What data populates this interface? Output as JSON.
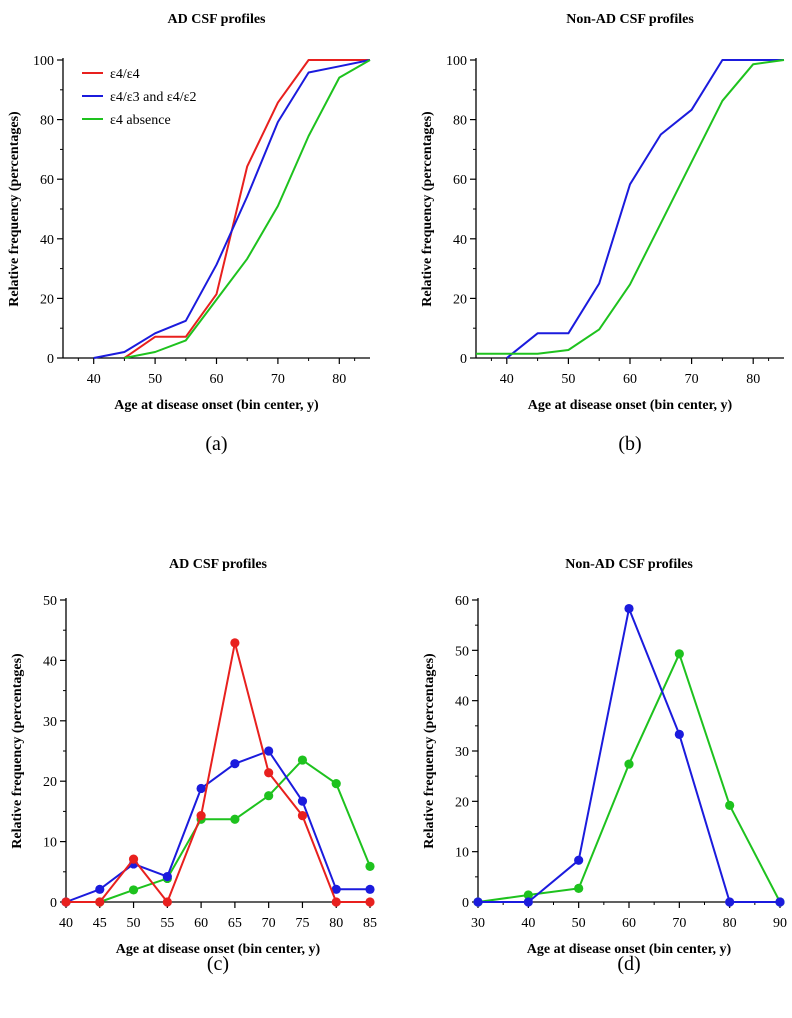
{
  "series_colors": {
    "e4e4": "#e8201e",
    "e4other": "#1b1bdd",
    "absence": "#1ec21e"
  },
  "legend": {
    "e4e4": "ε4/ε4",
    "e4other": "ε4/ε3 and ε4/ε2",
    "absence": "ε4 absence"
  },
  "chart_data": [
    {
      "id": "a",
      "panel_label": "(a)",
      "type": "line",
      "title": "AD CSF profiles",
      "xlabel": "Age at disease onset (bin center, y)",
      "ylabel": "Relative frequency (percentages)",
      "xlim": [
        35,
        85
      ],
      "ylim": [
        0,
        100
      ],
      "xticks": [
        40,
        50,
        60,
        70,
        80
      ],
      "yticks": [
        0,
        20,
        40,
        60,
        80,
        100
      ],
      "markers": false,
      "legend_position": "top-left",
      "series": [
        {
          "key": "e4e4",
          "name": "ε4/ε4",
          "x": [
            45,
            50,
            55,
            60,
            65,
            70,
            75,
            80,
            85
          ],
          "values": [
            0,
            7.1,
            7.1,
            21.4,
            64.3,
            85.7,
            100,
            100,
            100
          ]
        },
        {
          "key": "e4other",
          "name": "ε4/ε3 and ε4/ε2",
          "x": [
            40,
            45,
            50,
            55,
            60,
            65,
            70,
            75,
            80,
            85
          ],
          "values": [
            0,
            2,
            8.3,
            12.5,
            31.3,
            54.2,
            79.2,
            95.8,
            97.9,
            100
          ]
        },
        {
          "key": "absence",
          "name": "ε4 absence",
          "x": [
            45,
            50,
            55,
            60,
            65,
            70,
            75,
            80,
            85
          ],
          "values": [
            0,
            2,
            5.9,
            19.6,
            33.3,
            51,
            74.5,
            94.1,
            100
          ]
        }
      ]
    },
    {
      "id": "b",
      "panel_label": "(b)",
      "type": "line",
      "title": "Non-AD CSF profiles",
      "xlabel": "Age at disease onset (bin center, y)",
      "ylabel": "Relative frequency (percentages)",
      "xlim": [
        35,
        85
      ],
      "ylim": [
        0,
        100
      ],
      "xticks": [
        40,
        50,
        60,
        70,
        80
      ],
      "yticks": [
        0,
        20,
        40,
        60,
        80,
        100
      ],
      "markers": false,
      "series": [
        {
          "key": "e4other",
          "name": "ε4/ε3 and ε4/ε2",
          "x": [
            40,
            45,
            50,
            55,
            60,
            65,
            70,
            75,
            80,
            85
          ],
          "values": [
            0,
            8.3,
            8.3,
            25,
            58.3,
            75,
            83.3,
            100,
            100,
            100
          ]
        },
        {
          "key": "absence",
          "name": "ε4 absence",
          "x": [
            35,
            40,
            45,
            50,
            55,
            60,
            65,
            70,
            75,
            80,
            85
          ],
          "values": [
            1.4,
            1.4,
            1.4,
            2.7,
            9.6,
            24.7,
            45.2,
            65.8,
            86.3,
            98.6,
            100
          ]
        }
      ]
    },
    {
      "id": "c",
      "panel_label": "(c)",
      "type": "line",
      "title": "AD CSF profiles",
      "xlabel": "Age at disease onset (bin center, y)",
      "ylabel": "Relative frequency (percentages)",
      "xlim": [
        40,
        85
      ],
      "ylim": [
        0,
        50
      ],
      "xticks": [
        40,
        45,
        50,
        55,
        60,
        65,
        70,
        75,
        80,
        85
      ],
      "yticks": [
        0,
        10,
        20,
        30,
        40,
        50
      ],
      "markers": true,
      "series": [
        {
          "key": "absence",
          "name": "ε4 absence",
          "x": [
            45,
            50,
            55,
            60,
            65,
            70,
            75,
            80,
            85
          ],
          "values": [
            0,
            2,
            3.9,
            13.7,
            13.7,
            17.6,
            23.5,
            19.6,
            5.9
          ]
        },
        {
          "key": "e4other",
          "name": "ε4/ε3 and ε4/ε2",
          "x": [
            40,
            45,
            50,
            55,
            60,
            65,
            70,
            75,
            80,
            85
          ],
          "values": [
            0,
            2.1,
            6.3,
            4.2,
            18.8,
            22.9,
            25,
            16.7,
            2.1,
            2.1
          ]
        },
        {
          "key": "e4e4",
          "name": "ε4/ε4",
          "x": [
            40,
            45,
            50,
            55,
            60,
            65,
            70,
            75,
            80,
            85
          ],
          "values": [
            0,
            0,
            7.1,
            0,
            14.3,
            42.9,
            21.4,
            14.3,
            0,
            0
          ]
        }
      ]
    },
    {
      "id": "d",
      "panel_label": "(d)",
      "type": "line",
      "title": "Non-AD CSF profiles",
      "xlabel": "Age at disease onset (bin center, y)",
      "ylabel": "Relative frequency (percentages)",
      "xlim": [
        30,
        90
      ],
      "ylim": [
        0,
        60
      ],
      "xticks": [
        30,
        40,
        50,
        60,
        70,
        80,
        90
      ],
      "yticks": [
        0,
        10,
        20,
        30,
        40,
        50,
        60
      ],
      "markers": true,
      "series": [
        {
          "key": "absence",
          "name": "ε4 absence",
          "x": [
            30,
            40,
            50,
            60,
            70,
            80,
            90
          ],
          "values": [
            0,
            1.4,
            2.7,
            27.4,
            49.3,
            19.2,
            0
          ]
        },
        {
          "key": "e4other",
          "name": "ε4/ε3 and ε4/ε2",
          "x": [
            30,
            40,
            50,
            60,
            70,
            80,
            90
          ],
          "values": [
            0,
            0,
            8.3,
            58.3,
            33.3,
            0,
            0
          ]
        }
      ]
    }
  ]
}
